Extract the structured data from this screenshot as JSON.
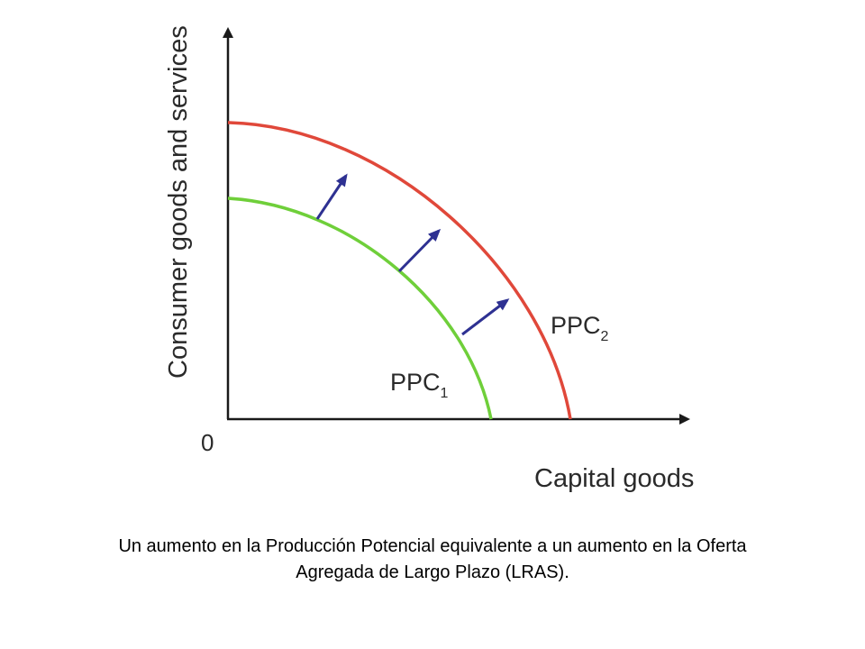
{
  "diagram": {
    "y_axis_label": "Consumer goods and services",
    "x_axis_label": "Capital goods",
    "origin_label": "0",
    "curves": [
      {
        "name": "PPC",
        "subscript": "1",
        "color": "#6fcf3a"
      },
      {
        "name": "PPC",
        "subscript": "2",
        "color": "#e0483a"
      }
    ],
    "arrow_color": "#2e3192",
    "axis_color": "#1a1a1a"
  },
  "caption": {
    "line1": "Un aumento en la Producción Potencial equivalente a un aumento en la Oferta",
    "line2": "Agregada de Largo Plazo (LRAS)."
  }
}
